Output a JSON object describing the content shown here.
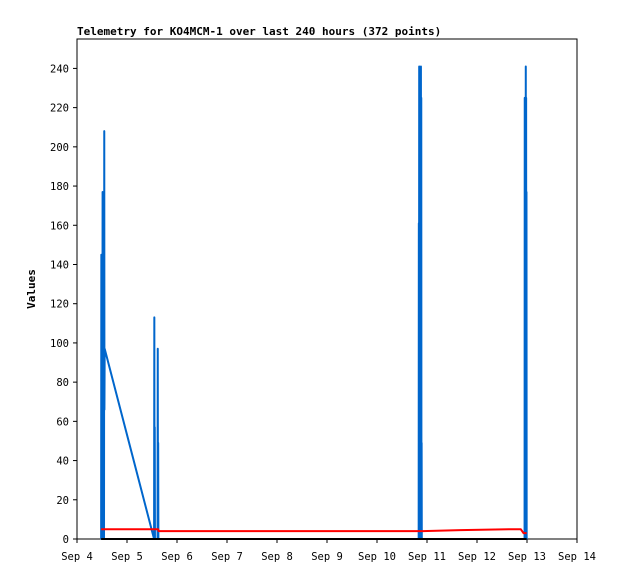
{
  "chart_data": {
    "type": "line",
    "title": "Telemetry for KO4MCM-1 over last 240 hours (372 points)",
    "xlabel": "",
    "ylabel": "Values",
    "x_tick_labels": [
      "Sep 4",
      "Sep 5",
      "Sep 6",
      "Sep 7",
      "Sep 8",
      "Sep 9",
      "Sep 10",
      "Sep 11",
      "Sep 12",
      "Sep 13",
      "Sep 14"
    ],
    "xlim": [
      "2024-09-04 00:00",
      "2024-09-14 00:00"
    ],
    "y_ticks": [
      0,
      20,
      40,
      60,
      80,
      100,
      120,
      140,
      160,
      180,
      200,
      220,
      240
    ],
    "ylim": [
      0,
      255
    ],
    "grid": false,
    "legend": "none",
    "series": [
      {
        "color": "#0066cc",
        "points": [
          [
            "2024-09-04 11:35",
            0
          ],
          [
            "2024-09-04 11:41",
            145
          ],
          [
            "2024-09-04 11:46",
            0
          ],
          [
            "2024-09-04 11:53",
            45
          ],
          [
            "2024-09-04 11:58",
            0
          ],
          [
            "2024-09-04 12:05",
            133
          ],
          [
            "2024-09-04 12:10",
            0
          ],
          [
            "2024-09-04 12:17",
            177
          ],
          [
            "2024-09-04 12:22",
            0
          ],
          [
            "2024-09-04 12:29",
            67
          ],
          [
            "2024-09-04 12:34",
            0
          ],
          [
            "2024-09-04 12:41",
            133
          ],
          [
            "2024-09-04 12:46",
            0
          ],
          [
            "2024-09-04 12:53",
            177
          ],
          [
            "2024-09-04 12:58",
            0
          ],
          [
            "2024-09-04 13:05",
            208
          ],
          [
            "2024-09-04 13:10",
            66
          ],
          [
            "2024-09-04 13:17",
            97
          ],
          [
            "2024-09-05 13:00",
            0
          ],
          [
            "2024-09-05 13:07",
            113
          ],
          [
            "2024-09-05 13:13",
            0
          ],
          [
            "2024-09-05 13:19",
            57
          ],
          [
            "2024-09-05 13:25",
            0
          ],
          [
            "2024-09-05 14:40",
            0
          ],
          [
            "2024-09-05 14:46",
            97
          ],
          [
            "2024-09-05 14:52",
            0
          ],
          [
            "2024-09-05 14:58",
            49
          ],
          [
            "2024-09-05 15:04",
            0
          ],
          [
            "2024-09-10 20:00",
            0
          ],
          [
            "2024-09-10 20:05",
            161
          ],
          [
            "2024-09-10 20:10",
            0
          ],
          [
            "2024-09-10 20:15",
            241
          ],
          [
            "2024-09-10 20:20",
            0
          ],
          [
            "2024-09-10 20:25",
            225
          ],
          [
            "2024-09-10 20:30",
            0
          ],
          [
            "2024-09-10 20:35",
            225
          ],
          [
            "2024-09-10 20:40",
            0
          ],
          [
            "2024-09-10 20:45",
            157
          ],
          [
            "2024-09-10 20:50",
            0
          ],
          [
            "2024-09-10 20:55",
            150
          ],
          [
            "2024-09-10 21:00",
            0
          ],
          [
            "2024-09-10 21:05",
            241
          ],
          [
            "2024-09-10 21:10",
            0
          ],
          [
            "2024-09-10 21:15",
            225
          ],
          [
            "2024-09-10 21:20",
            0
          ],
          [
            "2024-09-10 21:25",
            49
          ],
          [
            "2024-09-10 21:30",
            0
          ],
          [
            "2024-09-12 22:50",
            0
          ],
          [
            "2024-09-12 22:55",
            225
          ],
          [
            "2024-09-12 23:00",
            0
          ],
          [
            "2024-09-12 23:05",
            225
          ],
          [
            "2024-09-12 23:10",
            0
          ],
          [
            "2024-09-12 23:15",
            225
          ],
          [
            "2024-09-12 23:20",
            0
          ],
          [
            "2024-09-12 23:25",
            241
          ],
          [
            "2024-09-12 23:30",
            0
          ],
          [
            "2024-09-12 23:35",
            225
          ],
          [
            "2024-09-12 23:40",
            0
          ],
          [
            "2024-09-12 23:45",
            177
          ],
          [
            "2024-09-12 23:50",
            0
          ]
        ]
      },
      {
        "color": "#ff0000",
        "points": [
          [
            "2024-09-04 11:35",
            5
          ],
          [
            "2024-09-05 15:00",
            5
          ],
          [
            "2024-09-05 15:10",
            4
          ],
          [
            "2024-09-10 22:00",
            4
          ],
          [
            "2024-09-11 16:00",
            4.5
          ],
          [
            "2024-09-12 16:00",
            5
          ],
          [
            "2024-09-12 21:00",
            5
          ],
          [
            "2024-09-12 22:20",
            3
          ],
          [
            "2024-09-12 23:50",
            3
          ]
        ]
      },
      {
        "color": "#000000",
        "points": [
          [
            "2024-09-04 11:35",
            0
          ],
          [
            "2024-09-12 23:50",
            0
          ]
        ]
      }
    ]
  }
}
